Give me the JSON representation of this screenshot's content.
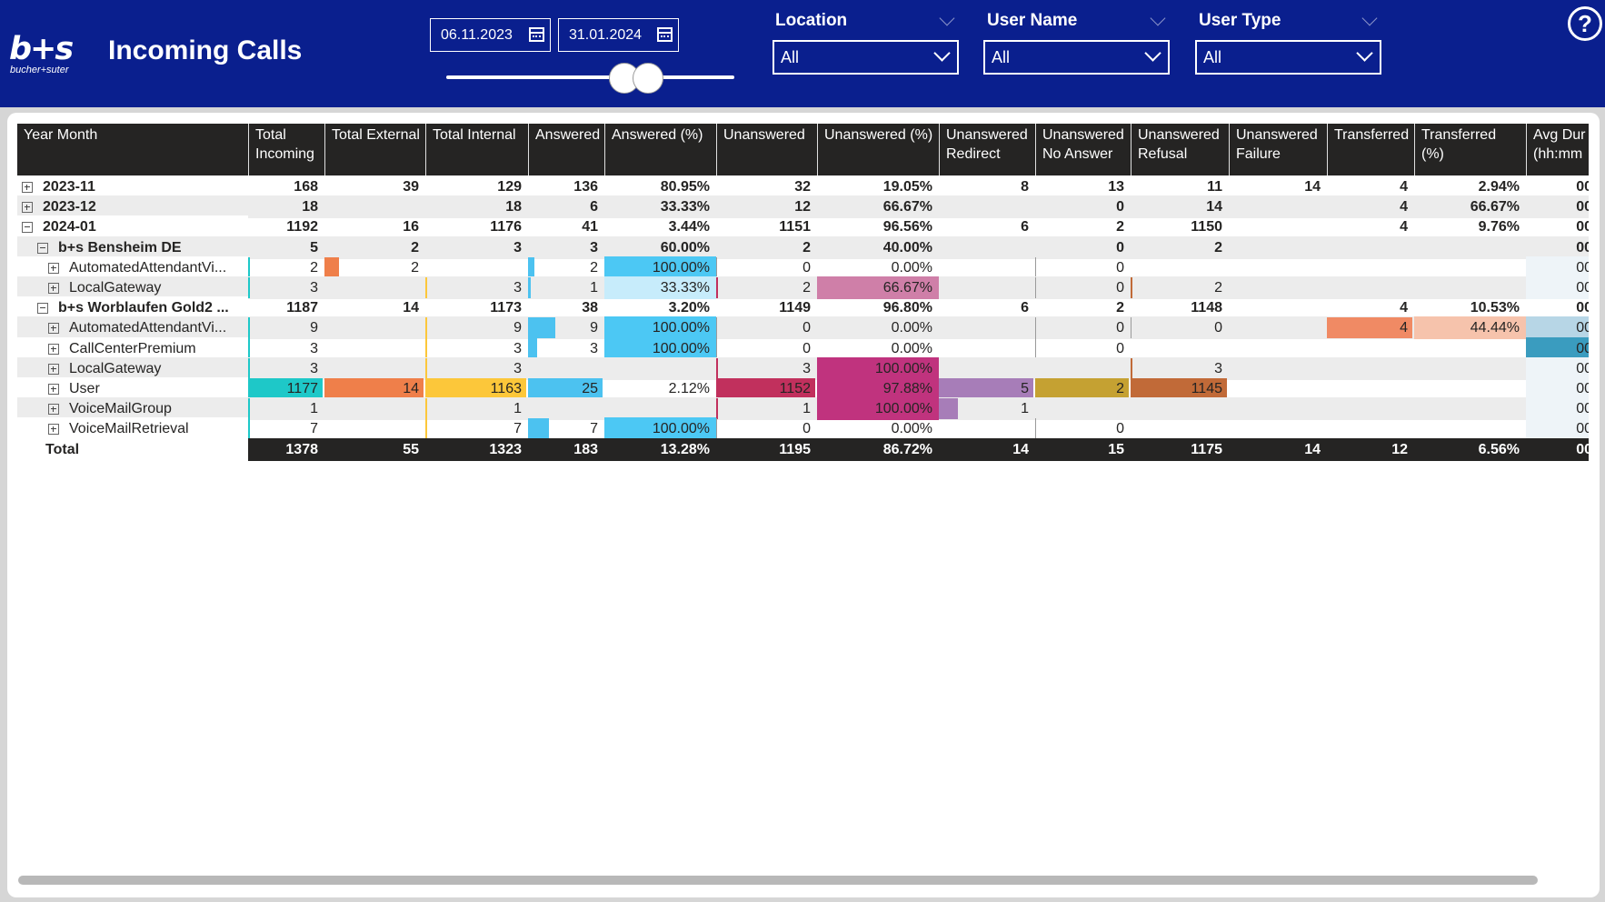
{
  "header": {
    "logo_mark": "b+s",
    "logo_subtext": "bucher+suter",
    "title": "Incoming Calls",
    "date_from": "06.11.2023",
    "date_to": "31.01.2024",
    "slider_range": [
      0.0,
      1.0
    ],
    "help_symbol": "?"
  },
  "slicers": [
    {
      "label": "Location",
      "value": "All"
    },
    {
      "label": "User Name",
      "value": "All"
    },
    {
      "label": "User Type",
      "value": "All"
    }
  ],
  "colors": {
    "header_bg": "#0a1f8e",
    "table_header_bg": "#252423",
    "row_shade": "#ececec",
    "bar_total_incoming": "#1ec8c8",
    "bar_total_external": "#ef7f4a",
    "bar_total_internal": "#fcc73a",
    "bar_answered": "#4cc2f0",
    "bar_unanswered": "#c1305d",
    "bar_redirect": "#a77db8",
    "bar_noanswer": "#c5a132",
    "bar_refusal": "#c16a38",
    "bar_transferred": "#f08a64",
    "bar_avg": "#3a9cbf"
  },
  "table": {
    "columns": [
      "Year Month",
      "Total Incoming",
      "Total External",
      "Total Internal",
      "Answered",
      "Answered (%)",
      "Unanswered",
      "Unanswered (%)",
      "Unanswered Redirect",
      "Unanswered No Answer",
      "Unanswered Refusal",
      "Unanswered Failure",
      "Transferred",
      "Transferred (%)",
      "Avg Dur (hh:mm"
    ],
    "rows": [
      {
        "label": "2023-11",
        "level": 0,
        "toggle": "plus",
        "bold": true,
        "shade": false,
        "cells": [
          "168",
          "39",
          "129",
          "136",
          "80.95%",
          "32",
          "19.05%",
          "8",
          "13",
          "11",
          "14",
          "4",
          "2.94%",
          "00"
        ]
      },
      {
        "label": "2023-12",
        "level": 0,
        "toggle": "plus",
        "bold": true,
        "shade": true,
        "cells": [
          "18",
          "",
          "18",
          "6",
          "33.33%",
          "12",
          "66.67%",
          "",
          "0",
          "14",
          "",
          "4",
          "66.67%",
          "00"
        ]
      },
      {
        "label": "2024-01",
        "level": 0,
        "toggle": "minus",
        "bold": true,
        "shade": false,
        "cells": [
          "1192",
          "16",
          "1176",
          "41",
          "3.44%",
          "1151",
          "96.56%",
          "6",
          "2",
          "1150",
          "",
          "4",
          "9.76%",
          "00"
        ]
      },
      {
        "label": "b+s Bensheim DE",
        "level": 1,
        "toggle": "minus",
        "bold": true,
        "shade": true,
        "cells": [
          "5",
          "2",
          "3",
          "3",
          "60.00%",
          "2",
          "40.00%",
          "",
          "0",
          "2",
          "",
          "",
          "",
          "00"
        ]
      },
      {
        "label": "AutomatedAttendantVi...",
        "level": 2,
        "toggle": "plus",
        "bold": false,
        "shade": false,
        "cells": [
          "2",
          "2",
          "",
          "2",
          "100.00%",
          "0",
          "0.00%",
          "",
          "0",
          "",
          "",
          "",
          "",
          "00"
        ]
      },
      {
        "label": "LocalGateway",
        "level": 2,
        "toggle": "plus",
        "bold": false,
        "shade": true,
        "cells": [
          "3",
          "",
          "3",
          "1",
          "33.33%",
          "2",
          "66.67%",
          "",
          "0",
          "2",
          "",
          "",
          "",
          "00"
        ]
      },
      {
        "label": "b+s Worblaufen Gold2 ...",
        "level": 1,
        "toggle": "minus",
        "bold": true,
        "shade": false,
        "cells": [
          "1187",
          "14",
          "1173",
          "38",
          "3.20%",
          "1149",
          "96.80%",
          "6",
          "2",
          "1148",
          "",
          "4",
          "10.53%",
          "00"
        ]
      },
      {
        "label": "AutomatedAttendantVi...",
        "level": 2,
        "toggle": "plus",
        "bold": false,
        "shade": true,
        "cells": [
          "9",
          "",
          "9",
          "9",
          "100.00%",
          "0",
          "0.00%",
          "",
          "0",
          "0",
          "",
          "4",
          "44.44%",
          "00"
        ]
      },
      {
        "label": "CallCenterPremium",
        "level": 2,
        "toggle": "plus",
        "bold": false,
        "shade": false,
        "cells": [
          "3",
          "",
          "3",
          "3",
          "100.00%",
          "0",
          "0.00%",
          "",
          "0",
          "",
          "",
          "",
          "",
          "00"
        ]
      },
      {
        "label": "LocalGateway",
        "level": 2,
        "toggle": "plus",
        "bold": false,
        "shade": true,
        "cells": [
          "3",
          "",
          "3",
          "",
          "",
          "3",
          "100.00%",
          "",
          "",
          "3",
          "",
          "",
          "",
          "00"
        ]
      },
      {
        "label": "User",
        "level": 2,
        "toggle": "plus",
        "bold": false,
        "shade": false,
        "cells": [
          "1177",
          "14",
          "1163",
          "25",
          "2.12%",
          "1152",
          "97.88%",
          "5",
          "2",
          "1145",
          "",
          "",
          "",
          "00"
        ]
      },
      {
        "label": "VoiceMailGroup",
        "level": 2,
        "toggle": "plus",
        "bold": false,
        "shade": true,
        "cells": [
          "1",
          "",
          "1",
          "",
          "",
          "1",
          "100.00%",
          "1",
          "",
          "",
          "",
          "",
          "",
          "00"
        ]
      },
      {
        "label": "VoiceMailRetrieval",
        "level": 2,
        "toggle": "plus",
        "bold": false,
        "shade": false,
        "cells": [
          "7",
          "",
          "7",
          "7",
          "100.00%",
          "0",
          "0.00%",
          "",
          "0",
          "",
          "",
          "",
          "",
          "00"
        ]
      }
    ],
    "total": {
      "label": "Total",
      "cells": [
        "1378",
        "55",
        "1323",
        "183",
        "13.28%",
        "1195",
        "86.72%",
        "14",
        "15",
        "1175",
        "14",
        "12",
        "6.56%",
        "00"
      ]
    }
  }
}
